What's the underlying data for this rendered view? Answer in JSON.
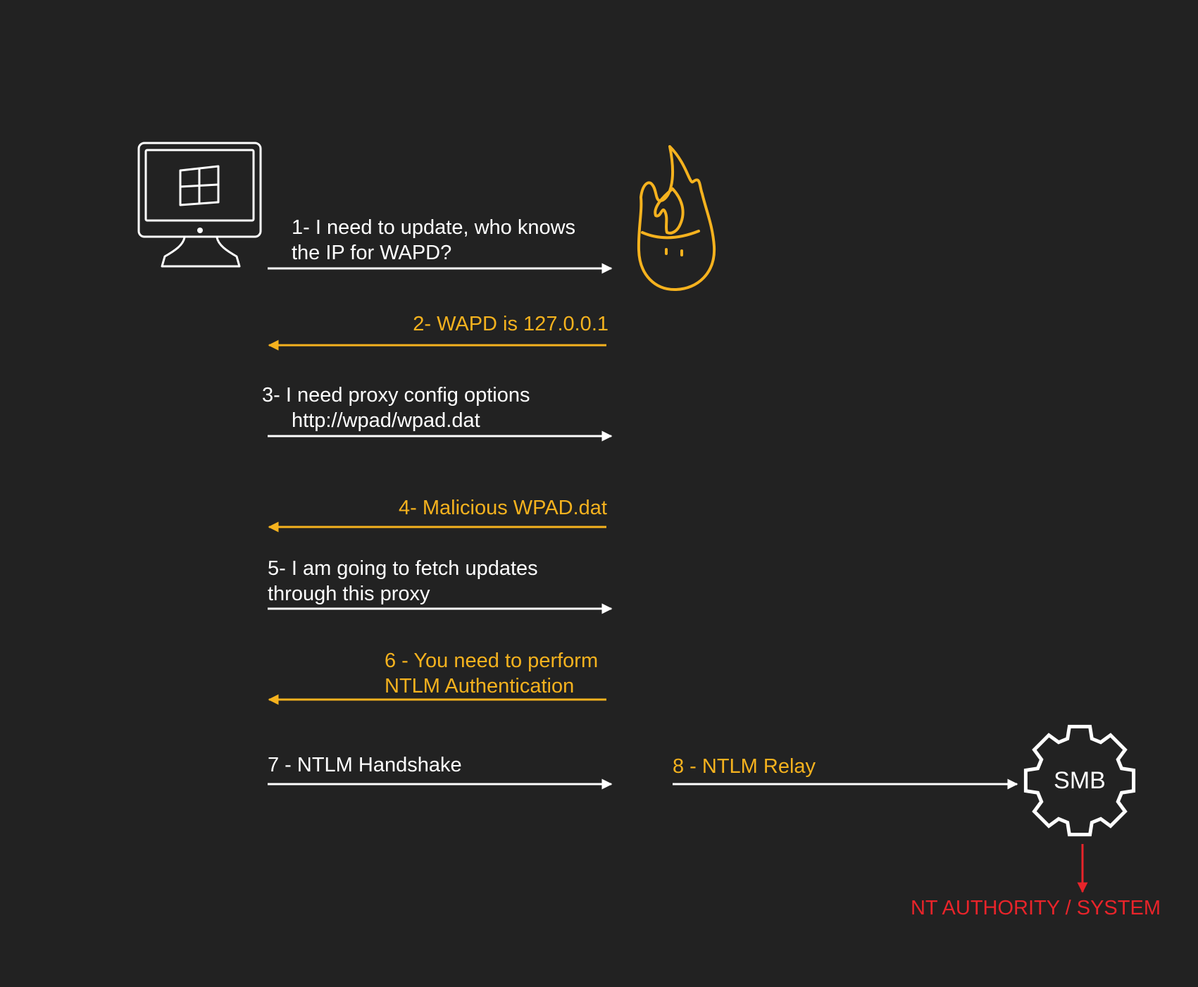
{
  "colors": {
    "background": "#222222",
    "request": "#ffffff",
    "response": "#f5b21e",
    "result": "#e8242a"
  },
  "nodes": {
    "victim": {
      "icon": "windows-monitor-icon"
    },
    "attacker": {
      "icon": "fire-icon"
    },
    "smb": {
      "icon": "gear-icon",
      "label": "SMB"
    }
  },
  "messages": [
    {
      "lines": [
        "1- I need to update, who knows",
        "the IP for WAPD?"
      ],
      "direction": "right",
      "color": "request"
    },
    {
      "lines": [
        "2- WAPD is 127.0.0.1"
      ],
      "direction": "left",
      "color": "response"
    },
    {
      "lines": [
        "3- I need proxy config options",
        "http://wpad/wpad.dat"
      ],
      "direction": "right",
      "color": "request"
    },
    {
      "lines": [
        "4- Malicious WPAD.dat"
      ],
      "direction": "left",
      "color": "response"
    },
    {
      "lines": [
        "5- I am going to fetch updates",
        "through this proxy"
      ],
      "direction": "right",
      "color": "request"
    },
    {
      "lines": [
        "6 - You need to perform",
        "NTLM Authentication"
      ],
      "direction": "left",
      "color": "response"
    },
    {
      "lines": [
        "7 - NTLM Handshake"
      ],
      "direction": "right",
      "color": "request"
    }
  ],
  "relay": {
    "label": "8 - NTLM Relay"
  },
  "result": {
    "label": "NT AUTHORITY / SYSTEM"
  }
}
